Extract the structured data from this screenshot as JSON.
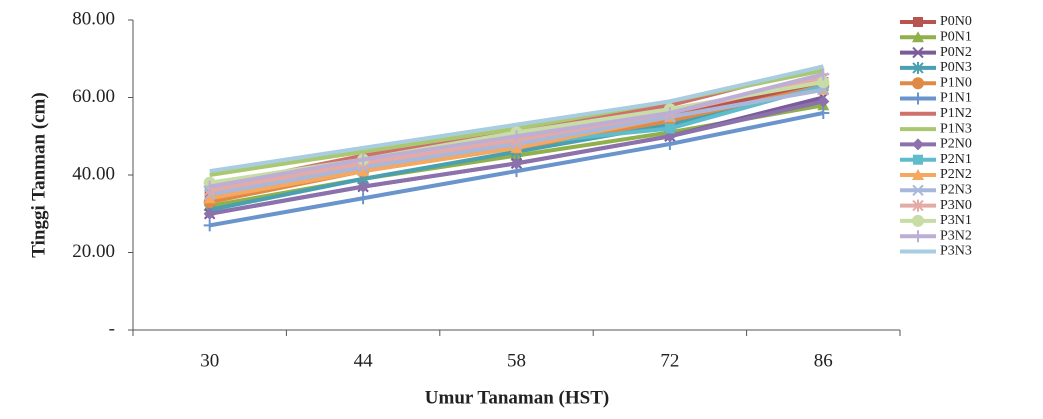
{
  "chart_data": {
    "type": "line",
    "x_label": "Umur Tanaman (HST)",
    "y_label": "Tinggi Tanman (cm)",
    "categories": [
      "30",
      "44",
      "58",
      "72",
      "86"
    ],
    "ylim": [
      0,
      80
    ],
    "yticks": [
      {
        "value": 0,
        "label": "-"
      },
      {
        "value": 20,
        "label": "20.00"
      },
      {
        "value": 40,
        "label": "40.00"
      },
      {
        "value": 60,
        "label": "60.00"
      },
      {
        "value": 80,
        "label": "80.00"
      }
    ],
    "legend": "right",
    "series": [
      {
        "name": "P0N0",
        "color": "#b85450",
        "marker": "square",
        "values": [
          35,
          42,
          48,
          55,
          64
        ]
      },
      {
        "name": "P0N1",
        "color": "#8fb04a",
        "marker": "triangle",
        "values": [
          32,
          39,
          45,
          51,
          58
        ]
      },
      {
        "name": "P0N2",
        "color": "#7a5c99",
        "marker": "x",
        "values": [
          30,
          37,
          43,
          50,
          60
        ]
      },
      {
        "name": "P0N3",
        "color": "#4aa0b0",
        "marker": "star",
        "values": [
          31,
          39,
          46,
          53,
          63
        ]
      },
      {
        "name": "P1N0",
        "color": "#e08a46",
        "marker": "circle",
        "values": [
          33,
          41,
          47,
          54,
          63
        ]
      },
      {
        "name": "P1N1",
        "color": "#6a94cc",
        "marker": "plus",
        "values": [
          27,
          34,
          41,
          48,
          56
        ]
      },
      {
        "name": "P1N2",
        "color": "#d0706c",
        "marker": "none",
        "values": [
          37,
          45,
          51,
          58,
          68
        ]
      },
      {
        "name": "P1N3",
        "color": "#a9c870",
        "marker": "none",
        "values": [
          40,
          46,
          52,
          59,
          67
        ]
      },
      {
        "name": "P2N0",
        "color": "#8c72ac",
        "marker": "diamond",
        "values": [
          30,
          37,
          43,
          50,
          59
        ]
      },
      {
        "name": "P2N1",
        "color": "#5ebccc",
        "marker": "square",
        "values": [
          37,
          42,
          48,
          52,
          63
        ]
      },
      {
        "name": "P2N2",
        "color": "#f4a860",
        "marker": "triangle",
        "values": [
          34,
          41,
          47,
          55,
          62
        ]
      },
      {
        "name": "P2N3",
        "color": "#a8b8dc",
        "marker": "x",
        "values": [
          35,
          42,
          48,
          55,
          62
        ]
      },
      {
        "name": "P3N0",
        "color": "#e4aaa6",
        "marker": "star",
        "values": [
          36,
          43,
          49,
          56,
          65
        ]
      },
      {
        "name": "P3N1",
        "color": "#c8dca6",
        "marker": "circle",
        "values": [
          38,
          44,
          51,
          57,
          64
        ]
      },
      {
        "name": "P3N2",
        "color": "#bcaed4",
        "marker": "plus",
        "values": [
          37,
          44,
          50,
          56,
          66
        ]
      },
      {
        "name": "P3N3",
        "color": "#a8cce0",
        "marker": "none",
        "values": [
          41,
          47,
          53,
          59,
          68
        ]
      }
    ]
  }
}
